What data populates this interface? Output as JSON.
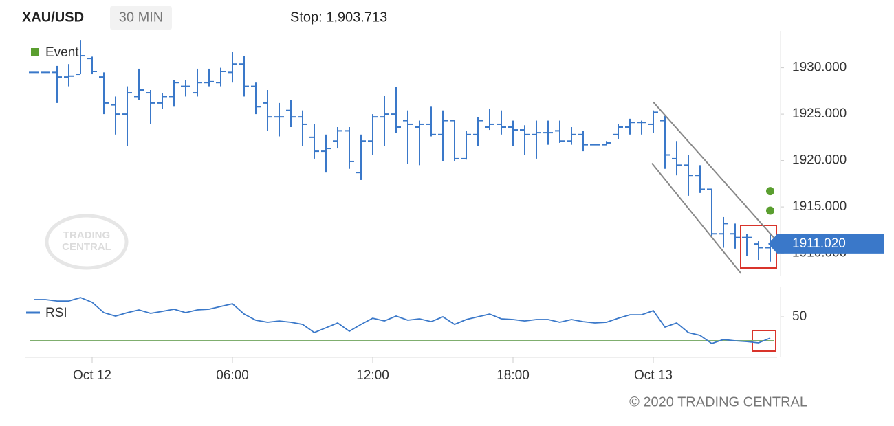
{
  "header": {
    "symbol": "XAU/USD",
    "interval": "30 MIN",
    "stop": "Stop: 1,903.713"
  },
  "watermark": [
    "TRADING",
    "CENTRAL"
  ],
  "footer": "© 2020 TRADING CENTRAL",
  "chart_data": [
    {
      "type": "ohlc",
      "color": "#3a78c9",
      "x": [
        -2.5,
        -2,
        -1.5,
        -1,
        -0.5,
        0,
        0.5,
        1,
        1.5,
        2,
        2.5,
        3,
        3.5,
        4,
        4.5,
        5,
        5.5,
        6,
        6.5,
        7,
        7.5,
        8,
        8.5,
        9,
        9.5,
        10,
        10.5,
        11,
        11.5,
        12,
        12.5,
        13,
        13.5,
        14,
        14.5,
        15,
        15.5,
        16,
        16.5,
        17,
        17.5,
        18,
        18.5,
        19,
        19.5,
        20,
        20.5,
        21,
        21.5,
        22,
        22.5,
        23,
        23.5,
        24,
        24.5,
        25,
        25.5,
        26,
        26.5,
        27,
        27.5,
        28,
        28.5,
        29
      ],
      "open": [
        1929.5,
        1929.5,
        1929.5,
        1929.0,
        1929.3,
        1931.0,
        1929.0,
        1926.0,
        1925.0,
        1926.9,
        1927.3,
        1926.2,
        1926.9,
        1928.0,
        1927.3,
        1928.4,
        1928.4,
        1929.5,
        1930.4,
        1928.0,
        1926.2,
        1924.7,
        1925.4,
        1924.7,
        1922.5,
        1921.0,
        1922.1,
        1923.2,
        1918.7,
        1922.1,
        1924.7,
        1925.0,
        1924.3,
        1923.6,
        1923.9,
        1922.8,
        1924.3,
        1920.2,
        1922.8,
        1923.6,
        1923.9,
        1923.6,
        1923.3,
        1922.8,
        1923.0,
        1923.2,
        1922.1,
        1922.8,
        1921.7,
        1921.7,
        1922.8,
        1923.6,
        1924.1,
        1923.9,
        1924.3,
        1920.2,
        1919.5,
        1918.4,
        1916.9,
        1912.1,
        1912.1,
        1911.7,
        1911.0,
        1910.6
      ],
      "high": [
        1929.5,
        1929.5,
        1930.2,
        1930.4,
        1933.0,
        1931.2,
        1929.5,
        1926.9,
        1928.0,
        1929.9,
        1927.6,
        1927.3,
        1928.7,
        1928.7,
        1929.9,
        1929.9,
        1930.0,
        1931.7,
        1931.3,
        1928.4,
        1927.6,
        1926.2,
        1926.5,
        1925.4,
        1923.9,
        1922.8,
        1923.6,
        1923.6,
        1922.8,
        1925.0,
        1927.0,
        1927.9,
        1925.4,
        1924.3,
        1925.8,
        1925.4,
        1924.3,
        1923.2,
        1924.7,
        1925.6,
        1925.4,
        1924.3,
        1923.8,
        1924.3,
        1924.3,
        1924.3,
        1923.6,
        1923.2,
        1921.7,
        1922.1,
        1923.9,
        1924.5,
        1924.3,
        1925.4,
        1924.8,
        1922.1,
        1920.6,
        1919.5,
        1916.9,
        1913.9,
        1913.2,
        1912.1,
        1911.3,
        1912.1
      ],
      "low": [
        1929.5,
        1929.5,
        1926.2,
        1928.0,
        1929.3,
        1929.3,
        1925.0,
        1922.8,
        1921.6,
        1926.5,
        1923.9,
        1925.6,
        1925.8,
        1926.9,
        1926.9,
        1928.0,
        1928.0,
        1928.4,
        1926.9,
        1925.0,
        1923.2,
        1922.6,
        1923.6,
        1921.6,
        1920.2,
        1918.7,
        1921.3,
        1919.1,
        1917.9,
        1920.6,
        1921.6,
        1923.0,
        1919.6,
        1919.5,
        1922.6,
        1919.9,
        1919.9,
        1920.1,
        1921.6,
        1923.3,
        1922.8,
        1921.6,
        1920.6,
        1920.2,
        1921.7,
        1921.9,
        1921.7,
        1921.0,
        1921.7,
        1921.7,
        1922.3,
        1922.8,
        1922.8,
        1923.0,
        1919.1,
        1918.4,
        1916.2,
        1916.5,
        1911.7,
        1910.6,
        1910.5,
        1909.7,
        1909.3,
        1909.1
      ],
      "close": [
        1929.5,
        1929.5,
        1929.0,
        1929.1,
        1931.3,
        1929.6,
        1926.2,
        1925.0,
        1927.3,
        1927.6,
        1926.2,
        1926.9,
        1928.4,
        1928.0,
        1928.4,
        1928.5,
        1929.6,
        1930.4,
        1928.0,
        1925.8,
        1924.7,
        1924.7,
        1924.7,
        1923.9,
        1921.0,
        1921.3,
        1923.2,
        1919.9,
        1922.1,
        1924.7,
        1925.0,
        1923.6,
        1923.9,
        1923.9,
        1922.8,
        1924.3,
        1920.2,
        1922.8,
        1924.3,
        1923.9,
        1923.6,
        1923.3,
        1922.8,
        1923.0,
        1923.0,
        1922.1,
        1922.8,
        1921.7,
        1921.7,
        1921.9,
        1923.6,
        1924.1,
        1924.1,
        1925.2,
        1920.6,
        1919.5,
        1918.4,
        1916.9,
        1912.1,
        1913.2,
        1911.7,
        1911.7,
        1910.6,
        1911.02
      ],
      "last_close_label": "1911.020",
      "xlim": [
        -2.9,
        29.3
      ],
      "xticks": [
        {
          "value": 0,
          "label": "Oct 12"
        },
        {
          "value": 6,
          "label": "06:00"
        },
        {
          "value": 12,
          "label": "12:00"
        },
        {
          "value": 18,
          "label": "18:00"
        },
        {
          "value": 24,
          "label": "Oct 13"
        }
      ],
      "ylim": [
        1907.6,
        1933.6
      ],
      "yticks": [
        {
          "value": 1910,
          "label": "1910.000"
        },
        {
          "value": 1915,
          "label": "1915.000"
        },
        {
          "value": 1920,
          "label": "1920.000"
        },
        {
          "value": 1925,
          "label": "1925.000"
        },
        {
          "value": 1930,
          "label": "1930.000"
        }
      ],
      "events": {
        "name": "Event",
        "color": "#5a9e2f",
        "x": [
          29,
          29
        ],
        "values": [
          1916.7,
          1914.6
        ]
      },
      "trendlines": [
        {
          "color": "#888888",
          "x": [
            24.0,
            29.15
          ],
          "values": [
            1926.3,
            1911.7
          ]
        },
        {
          "color": "#888888",
          "x": [
            23.94,
            27.76
          ],
          "values": [
            1919.7,
            1907.8
          ]
        }
      ]
    },
    {
      "type": "line",
      "series": [
        {
          "name": "RSI",
          "color": "#3a78c9",
          "values": [
            64.5,
            64.5,
            63.3,
            63.3,
            66.2,
            62.2,
            53.5,
            50.6,
            53.5,
            55.8,
            52.9,
            54.6,
            56.4,
            53.5,
            55.8,
            56.4,
            58.7,
            61.0,
            52.3,
            47.1,
            45.4,
            46.5,
            45.4,
            43.6,
            36.7,
            40.7,
            44.8,
            37.8,
            43.6,
            48.8,
            46.5,
            50.6,
            47.1,
            48.3,
            45.9,
            50.0,
            43.6,
            47.7,
            50.0,
            52.3,
            48.3,
            47.7,
            46.5,
            47.7,
            47.7,
            45.4,
            47.7,
            45.9,
            44.8,
            45.4,
            48.8,
            51.7,
            51.7,
            55.2,
            41.3,
            44.8,
            36.7,
            34.3,
            27.4,
            30.9,
            29.7,
            29.1,
            28.0,
            32.0
          ]
        }
      ],
      "ylim": [
        15.8,
        73.8
      ],
      "yticks": [
        50
      ],
      "levels": [
        30,
        70
      ],
      "level_color": "#7fae6e"
    }
  ]
}
